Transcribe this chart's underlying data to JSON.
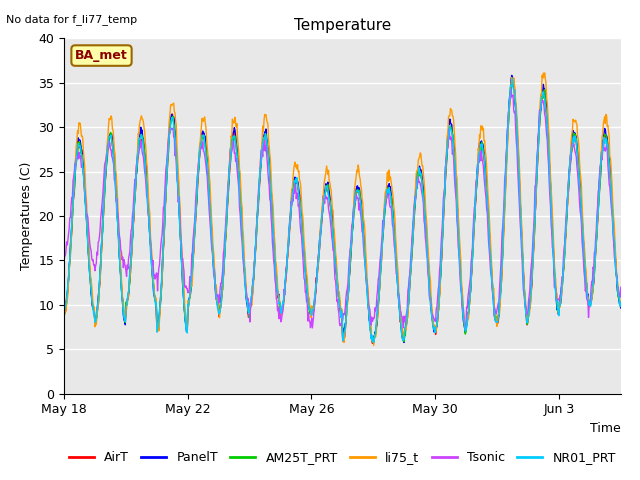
{
  "title": "Temperature",
  "ylabel": "Temperatures (C)",
  "xlabel": "Time",
  "no_data_text": "No data for f_li77_temp",
  "legend_label_text": "BA_met",
  "ylim": [
    0,
    40
  ],
  "yticks": [
    0,
    5,
    10,
    15,
    20,
    25,
    30,
    35,
    40
  ],
  "xtick_labels": [
    "May 18",
    "May 22",
    "May 26",
    "May 30",
    "Jun 3"
  ],
  "xtick_positions": [
    0,
    4,
    8,
    12,
    16
  ],
  "n_days": 18,
  "series": [
    {
      "name": "AirT",
      "color": "#ff0000",
      "lw": 1.0
    },
    {
      "name": "PanelT",
      "color": "#0000ff",
      "lw": 1.0
    },
    {
      "name": "AM25T_PRT",
      "color": "#00cc00",
      "lw": 1.0
    },
    {
      "name": "li75_t",
      "color": "#ff9900",
      "lw": 1.0
    },
    {
      "name": "Tsonic",
      "color": "#cc44ff",
      "lw": 1.0
    },
    {
      "name": "NR01_PRT",
      "color": "#00ccff",
      "lw": 1.0
    }
  ],
  "bg_color": "#e8e8e8",
  "fig_color": "#ffffff",
  "title_fontsize": 11,
  "axis_label_fontsize": 9,
  "tick_fontsize": 9,
  "legend_fontsize": 9,
  "grid_color": "#ffffff",
  "grid_lw": 1.0
}
